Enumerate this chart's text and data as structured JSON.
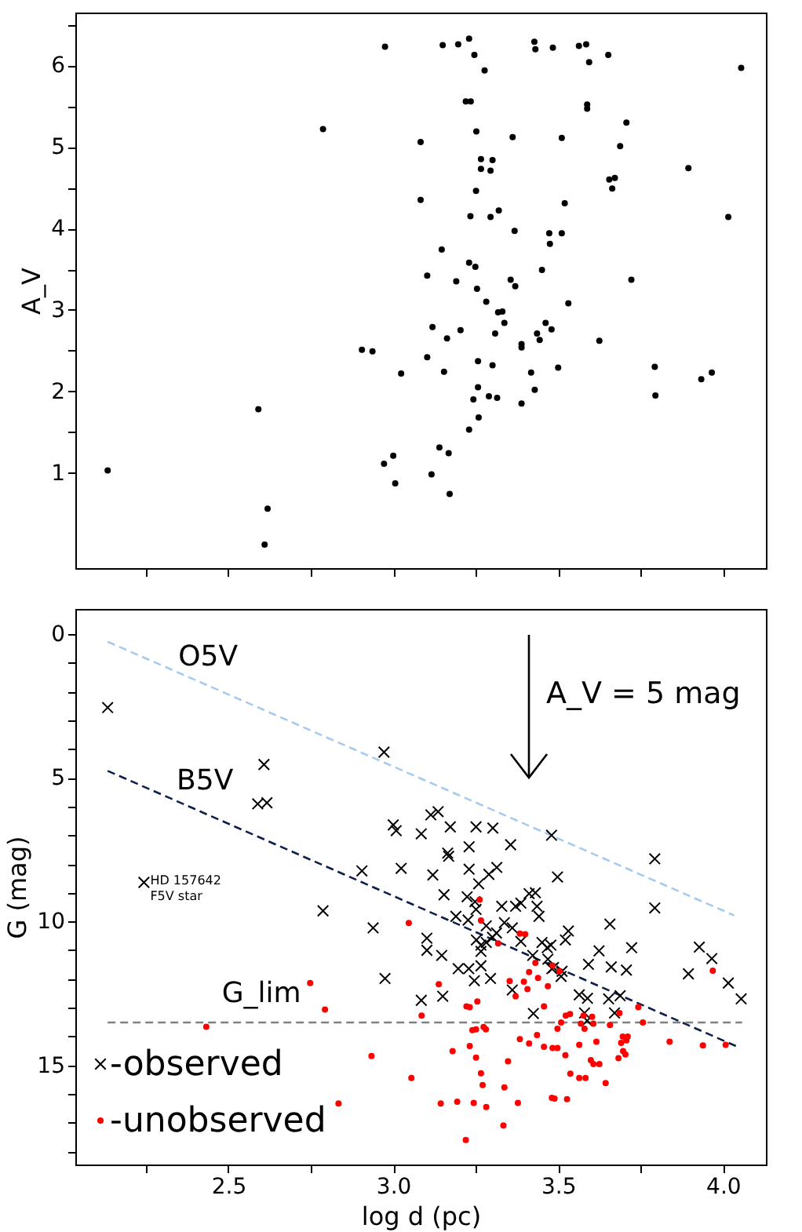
{
  "chart_data": [
    {
      "type": "scatter",
      "ylabel": "A_V",
      "marker": "circle",
      "tick_labels": "y",
      "grid": false,
      "xlim": [
        2.036,
        4.13
      ],
      "ylim": [
        -0.17,
        6.65
      ],
      "xticks": [
        {
          "value": 2.25,
          "label": null
        },
        {
          "value": 2.5,
          "label": null
        },
        {
          "value": 2.75,
          "label": null
        },
        {
          "value": 3,
          "label": null
        },
        {
          "value": 3.25,
          "label": null
        },
        {
          "value": 3.5,
          "label": null
        },
        {
          "value": 3.75,
          "label": null
        },
        {
          "value": 4,
          "label": null
        }
      ],
      "yticks": [
        1,
        {
          "value": 1.5,
          "label": null
        },
        2,
        {
          "value": 2.5,
          "label": null
        },
        3,
        {
          "value": 3.5,
          "label": null
        },
        4,
        {
          "value": 4.5,
          "label": null
        },
        5,
        {
          "value": 5.5,
          "label": null
        },
        6,
        {
          "value": 6.5,
          "label": null
        }
      ],
      "series": [
        {
          "color": "#000000",
          "x": [
            2.975,
            3.15,
            3.197,
            3.23,
            3.246,
            3.277,
            3.428,
            3.431,
            3.484,
            3.563,
            3.585,
            3.594,
            3.652,
            4.055,
            3.22,
            3.235,
            3.588,
            3.588,
            2.787,
            3.707,
            3.083,
            3.252,
            3.362,
            3.511,
            3.688,
            3.266,
            3.301,
            3.266,
            3.295,
            3.895,
            3.655,
            3.672,
            3.664,
            3.251,
            3.083,
            3.52,
            3.234,
            3.295,
            3.32,
            4.016,
            3.368,
            3.473,
            3.511,
            3.475,
            3.147,
            3.23,
            3.249,
            3.103,
            3.191,
            3.356,
            3.451,
            3.722,
            3.37,
            3.254,
            3.282,
            3.531,
            3.318,
            3.331,
            3.119,
            3.204,
            3.337,
            3.163,
            3.309,
            3.436,
            3.462,
            3.48,
            3.444,
            3.389,
            3.389,
            3.625,
            2.905,
            2.937,
            3.103,
            3.257,
            3.301,
            3.5,
            3.793,
            3.024,
            3.154,
            3.418,
            3.934,
            3.966,
            3.257,
            3.429,
            3.29,
            3.315,
            3.243,
            3.795,
            3.389,
            2.591,
            3.259,
            3.23,
            3.14,
            3.168,
            3.0,
            2.972,
            2.134,
            3.116,
            3.006,
            3.171,
            2.619,
            2.61
          ],
          "values": [
            6.23,
            6.25,
            6.26,
            6.33,
            6.13,
            5.94,
            6.29,
            6.2,
            6.22,
            6.24,
            6.26,
            6.04,
            6.13,
            5.97,
            5.56,
            5.56,
            5.52,
            5.47,
            5.22,
            5.3,
            5.06,
            5.19,
            5.12,
            5.11,
            5.01,
            4.85,
            4.84,
            4.73,
            4.71,
            4.74,
            4.6,
            4.62,
            4.49,
            4.46,
            4.35,
            4.31,
            4.15,
            4.14,
            4.22,
            4.14,
            3.97,
            3.94,
            3.94,
            3.81,
            3.74,
            3.58,
            3.53,
            3.42,
            3.35,
            3.37,
            3.49,
            3.37,
            3.29,
            3.26,
            3.1,
            3.08,
            2.97,
            2.98,
            2.79,
            2.75,
            2.84,
            2.65,
            2.71,
            2.71,
            2.84,
            2.76,
            2.63,
            2.58,
            2.54,
            2.62,
            2.51,
            2.49,
            2.42,
            2.37,
            2.32,
            2.29,
            2.3,
            2.22,
            2.24,
            2.23,
            2.15,
            2.23,
            2.05,
            2.02,
            1.94,
            1.92,
            1.9,
            1.95,
            1.85,
            1.78,
            1.68,
            1.53,
            1.31,
            1.24,
            1.21,
            1.11,
            1.03,
            0.98,
            0.87,
            0.74,
            0.56,
            0.12
          ]
        }
      ]
    },
    {
      "type": "scatter",
      "xlabel": "log d (pc)",
      "ylabel": "G (mag)",
      "legend": "bottom left",
      "grid": false,
      "xlim": [
        2.036,
        4.13
      ],
      "ylim": [
        18.45,
        -0.87
      ],
      "xticks": [
        {
          "value": 2.25,
          "label": null
        },
        2.5,
        {
          "value": 2.75,
          "label": null
        },
        {
          "value": 3,
          "label": "3.0"
        },
        {
          "value": 3.25,
          "label": null
        },
        3.5,
        {
          "value": 3.75,
          "label": null
        },
        {
          "value": 4,
          "label": "4.0"
        }
      ],
      "yticks": [
        0,
        {
          "value": 1,
          "label": null
        },
        {
          "value": 2,
          "label": null
        },
        {
          "value": 3,
          "label": null
        },
        {
          "value": 4,
          "label": null
        },
        5,
        {
          "value": 6,
          "label": null
        },
        {
          "value": 7,
          "label": null
        },
        {
          "value": 8,
          "label": null
        },
        {
          "value": 9,
          "label": null
        },
        10,
        {
          "value": 11,
          "label": null
        },
        {
          "value": 12,
          "label": null
        },
        {
          "value": 13,
          "label": null
        },
        {
          "value": 14,
          "label": null
        },
        15,
        {
          "value": 16,
          "label": null
        },
        {
          "value": 17,
          "label": null
        },
        {
          "value": 18,
          "label": null
        }
      ],
      "annotations": [
        "A_V = 5 mag",
        {
          "text": "HD 157642\nF5V star",
          "x": 2.244,
          "y": 8.64
        }
      ],
      "series": [
        {
          "name": "O5V",
          "type": "line",
          "line_style": "dashed",
          "marker": "none",
          "color": "#a6cbef",
          "x": [
            2.134,
            4.034
          ],
          "values": [
            0.27,
            9.79
          ]
        },
        {
          "name": "B5V",
          "type": "line",
          "line_style": "dashed",
          "marker": "none",
          "color": "#0d1f4a",
          "x": [
            2.134,
            4.045
          ],
          "values": [
            4.76,
            14.36
          ]
        },
        {
          "name": "G_lim",
          "type": "line",
          "line_style": "dashed",
          "marker": "none",
          "color": "#808080",
          "x": [
            2.134,
            4.058
          ],
          "values": [
            13.51,
            13.51
          ]
        },
        {
          "name": "-observed",
          "type": "scatter",
          "marker": "cross",
          "color": "#000000",
          "x": [
            2.134,
            2.972,
            2.608,
            2.589,
            2.617,
            3.48,
            3.0,
            3.009,
            3.085,
            3.114,
            3.136,
            3.173,
            3.251,
            3.302,
            3.356,
            3.23,
            3.165,
            3.168,
            3.793,
            2.905,
            3.024,
            3.12,
            3.23,
            3.29,
            3.314,
            3.498,
            2.244,
            3.259,
            3.154,
            3.224,
            3.248,
            3.251,
            3.329,
            3.371,
            3.387,
            3.412,
            3.431,
            3.436,
            3.442,
            3.19,
            3.227,
            2.787,
            2.939,
            3.102,
            3.102,
            3.147,
            3.282,
            3.337,
            3.313,
            3.301,
            3.282,
            3.252,
            3.266,
            3.266,
            3.361,
            3.387,
            3.451,
            3.467,
            3.478,
            3.522,
            3.531,
            3.657,
            3.793,
            3.423,
            3.481,
            3.512,
            3.509,
            3.592,
            3.624,
            3.661,
            3.707,
            3.723,
            3.928,
            3.966,
            4.016,
            4.055,
            3.895,
            3.197,
            3.229,
            3.266,
            3.246,
            3.295,
            3.361,
            2.975,
            3.085,
            3.15,
            3.425,
            3.564,
            3.589,
            3.653,
            3.688,
            3.58,
            3.588,
            3.671,
            3.469,
            3.486
          ],
          "values": [
            2.56,
            4.11,
            4.54,
            5.91,
            5.87,
            7.0,
            6.64,
            6.84,
            6.95,
            6.29,
            6.18,
            6.71,
            6.71,
            6.75,
            7.33,
            7.4,
            7.62,
            7.73,
            7.82,
            8.24,
            8.15,
            8.38,
            8.18,
            8.36,
            8.12,
            8.45,
            8.64,
            8.69,
            9.07,
            9.14,
            9.31,
            9.58,
            9.47,
            9.47,
            9.36,
            9.03,
            9.0,
            9.47,
            9.82,
            9.82,
            9.95,
            9.63,
            10.22,
            10.58,
            11.0,
            11.18,
            10.15,
            10.04,
            10.4,
            10.55,
            10.73,
            10.64,
            10.82,
            11.04,
            10.22,
            10.69,
            10.73,
            10.91,
            10.82,
            10.64,
            10.33,
            10.09,
            9.53,
            11.18,
            11.64,
            11.73,
            11.91,
            11.49,
            11.02,
            11.58,
            11.69,
            10.91,
            10.89,
            11.29,
            12.14,
            12.69,
            11.82,
            11.64,
            11.64,
            11.54,
            12.06,
            11.98,
            12.38,
            11.98,
            12.74,
            12.6,
            13.2,
            12.55,
            12.67,
            12.69,
            12.58,
            13.18,
            13.45,
            13.18,
            11.31,
            11.6
          ]
        },
        {
          "name": "-unobserved",
          "type": "scatter",
          "marker": "circle",
          "color": "#ff0000",
          "x": [
            2.748,
            2.793,
            2.433,
            2.934,
            3.055,
            2.834,
            3.047,
            3.138,
            3.086,
            3.18,
            3.144,
            3.194,
            3.244,
            3.282,
            3.334,
            3.22,
            3.251,
            3.266,
            3.271,
            3.232,
            3.24,
            3.251,
            3.274,
            3.281,
            3.222,
            3.232,
            3.255,
            3.262,
            3.266,
            3.318,
            3.348,
            3.337,
            3.378,
            3.384,
            3.412,
            3.436,
            3.457,
            3.483,
            3.498,
            3.522,
            3.537,
            3.564,
            3.583,
            3.599,
            3.607,
            3.625,
            3.644,
            3.481,
            3.489,
            3.527,
            3.353,
            3.371,
            3.396,
            3.407,
            3.412,
            3.439,
            3.469,
            3.431,
            3.483,
            3.504,
            3.384,
            3.4,
            3.457,
            3.498,
            3.509,
            3.523,
            3.536,
            3.569,
            3.58,
            3.577,
            3.603,
            3.607,
            3.564,
            3.616,
            3.657,
            3.686,
            3.696,
            3.707,
            3.711,
            3.691,
            3.697,
            3.704,
            3.683,
            3.743,
            3.757,
            3.838,
            3.939,
            3.969,
            4.008
          ],
          "values": [
            12.14,
            13.06,
            13.66,
            14.68,
            15.44,
            16.33,
            10.05,
            12.18,
            13.27,
            14.51,
            16.33,
            16.27,
            16.31,
            16.45,
            17.09,
            17.6,
            14.73,
            15.28,
            15.69,
            14.33,
            13.78,
            13.75,
            13.67,
            13.75,
            12.95,
            12.98,
            12.78,
            9.24,
            9.96,
            10.76,
            14.86,
            15.77,
            16.31,
            14.09,
            14.24,
            13.95,
            14.36,
            14.4,
            14.4,
            14.65,
            15.29,
            15.44,
            15.44,
            14.82,
            14.96,
            14.96,
            15.62,
            16.13,
            16.16,
            16.18,
            12.07,
            12.6,
            12.09,
            12.35,
            11.76,
            11.96,
            12.25,
            11.44,
            11.53,
            11.73,
            10.42,
            10.44,
            12.95,
            13.73,
            13.51,
            13.27,
            13.22,
            13.55,
            13.73,
            13.27,
            13.31,
            13.55,
            14.29,
            14.18,
            13.6,
            13.18,
            14.0,
            14.13,
            14.0,
            14.22,
            14.51,
            14.62,
            14.75,
            12.98,
            13.51,
            14.18,
            14.31,
            11.71,
            14.29
          ]
        }
      ]
    }
  ]
}
